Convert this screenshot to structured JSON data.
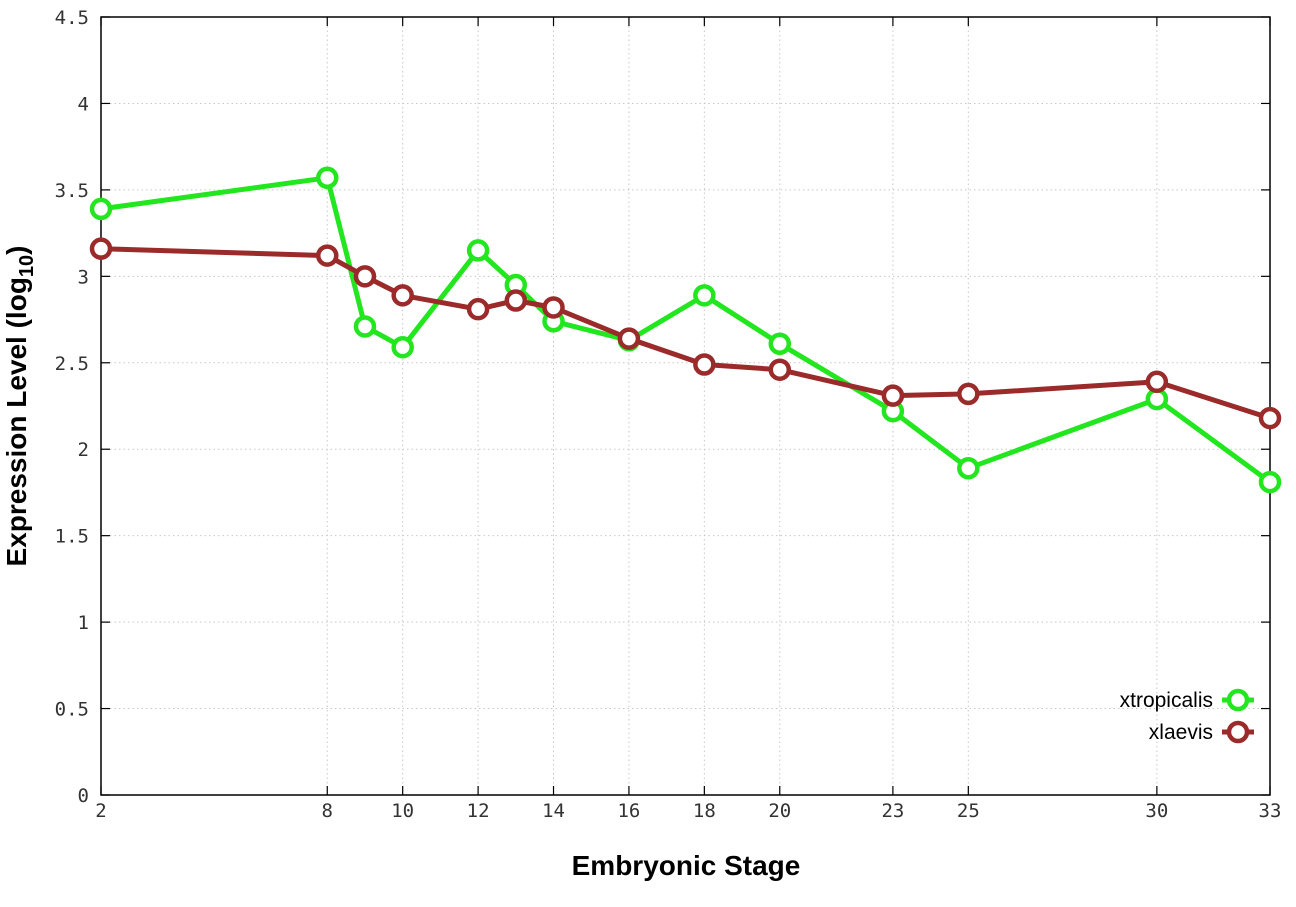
{
  "chart_data": {
    "type": "line",
    "xlabel": "Embryonic Stage",
    "ylabel": {
      "main": "Expression Level (log",
      "sub": "10",
      "end": ")"
    },
    "xlim": [
      2,
      33
    ],
    "ylim": [
      0,
      4.5
    ],
    "x_ticks": [
      2,
      8,
      10,
      12,
      14,
      16,
      18,
      20,
      23,
      25,
      30,
      33
    ],
    "y_ticks": [
      0,
      0.5,
      1,
      1.5,
      2,
      2.5,
      3,
      3.5,
      4,
      4.5
    ],
    "y_tick_labels": [
      "0",
      "0.5",
      "1",
      "1.5",
      "2",
      "2.5",
      "3",
      "3.5",
      "4",
      "4.5"
    ],
    "grid": true,
    "legend_position": "bottom-right",
    "x": [
      2,
      8,
      9,
      10,
      12,
      13,
      14,
      16,
      18,
      20,
      23,
      25,
      30,
      33
    ],
    "series": [
      {
        "name": "xtropicalis",
        "color": "#22e61e",
        "values": [
          3.39,
          3.57,
          2.71,
          2.59,
          3.15,
          2.95,
          2.74,
          2.63,
          2.89,
          2.61,
          2.22,
          1.89,
          2.29,
          1.81
        ]
      },
      {
        "name": "xlaevis",
        "color": "#9b2a2a",
        "values": [
          3.16,
          3.12,
          3.0,
          2.89,
          2.81,
          2.86,
          2.82,
          2.64,
          2.49,
          2.46,
          2.31,
          2.32,
          2.39,
          2.18
        ]
      }
    ]
  }
}
